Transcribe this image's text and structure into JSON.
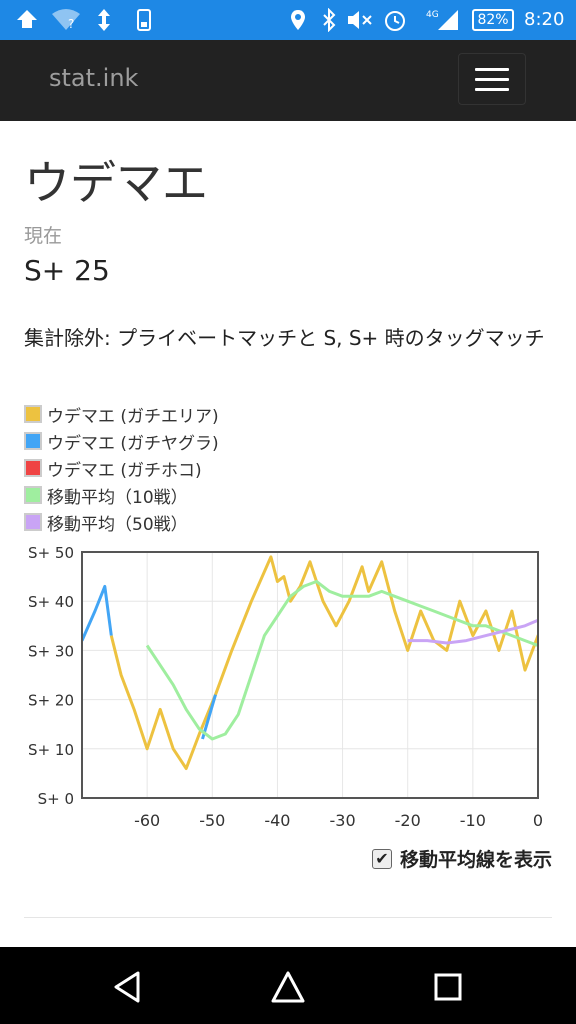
{
  "status_bar": {
    "battery": "82%",
    "time": "8:20",
    "network": "4G",
    "icons": [
      "app-icon",
      "wifi-icon",
      "sync-icon",
      "device-icon",
      "location-icon",
      "bluetooth-icon",
      "mute-icon",
      "alarm-icon",
      "signal-icon"
    ]
  },
  "navbar": {
    "brand": "stat.ink",
    "menu_icon": "hamburger-icon"
  },
  "page": {
    "title": "ウデマエ",
    "current_label": "現在",
    "current_value": "S+ 25",
    "note": "集計除外: プライベートマッチと S, S+ 時のタッグマッチ"
  },
  "legend": [
    {
      "label": "ウデマエ (ガチエリア)",
      "color": "#edc240"
    },
    {
      "label": "ウデマエ (ガチヤグラ)",
      "color": "#42a5f5"
    },
    {
      "label": "ウデマエ (ガチホコ)",
      "color": "#ef4444"
    },
    {
      "label": "移動平均（10戦）",
      "color": "#9fee9f"
    },
    {
      "label": "移動平均（50戦）",
      "color": "#c9a4f5"
    }
  ],
  "moving_average_toggle": {
    "label": "移動平均線を表示",
    "checked": true
  },
  "chart_data": {
    "type": "line",
    "x_ticks": [
      "-60",
      "-50",
      "-40",
      "-30",
      "-20",
      "-10",
      "0"
    ],
    "y_ticks": [
      "S+ 0",
      "S+ 10",
      "S+ 20",
      "S+ 30",
      "S+ 40",
      "S+ 50"
    ],
    "xlim": [
      -70,
      0
    ],
    "ylim": [
      0,
      50
    ],
    "grid": true,
    "series": [
      {
        "name": "ウデマエ (ガチエリア)",
        "color": "#edc240",
        "points": [
          [
            -65.5,
            33
          ],
          [
            -64,
            25
          ],
          [
            -62,
            18
          ],
          [
            -60,
            10
          ],
          [
            -58,
            18
          ],
          [
            -56,
            10
          ],
          [
            -54,
            6
          ],
          [
            -52,
            13
          ],
          [
            -49.5,
            21
          ],
          [
            -47,
            30
          ],
          [
            -44,
            40
          ],
          [
            -41,
            49
          ],
          [
            -40,
            44
          ],
          [
            -39,
            45
          ],
          [
            -38,
            40
          ],
          [
            -36.5,
            43
          ],
          [
            -35,
            48
          ],
          [
            -33,
            40
          ],
          [
            -31,
            35
          ],
          [
            -29,
            40
          ],
          [
            -27,
            47
          ],
          [
            -26,
            42
          ],
          [
            -24,
            48
          ],
          [
            -22,
            38
          ],
          [
            -20,
            30
          ],
          [
            -18,
            38
          ],
          [
            -16,
            32
          ],
          [
            -14,
            30
          ],
          [
            -12,
            40
          ],
          [
            -10,
            33
          ],
          [
            -8,
            38
          ],
          [
            -6,
            30
          ],
          [
            -4,
            38
          ],
          [
            -2,
            26
          ],
          [
            0,
            33
          ],
          [
            1.5,
            25
          ]
        ]
      },
      {
        "name": "ウデマエ (ガチヤグラ)",
        "color": "#42a5f5",
        "points": [
          [
            -70,
            32
          ],
          [
            -68,
            38
          ],
          [
            -66.5,
            43
          ],
          [
            -65.5,
            33
          ]
        ]
      },
      {
        "name": "ウデマエ (ガチヤグラ)",
        "color": "#42a5f5",
        "points": [
          [
            -51.5,
            12
          ],
          [
            -49.5,
            21
          ]
        ]
      },
      {
        "name": "移動平均（10戦）",
        "color": "#9fee9f",
        "points": [
          [
            -60,
            31
          ],
          [
            -58,
            27
          ],
          [
            -56,
            23
          ],
          [
            -54,
            18
          ],
          [
            -52,
            14
          ],
          [
            -50,
            12
          ],
          [
            -48,
            13
          ],
          [
            -46,
            17
          ],
          [
            -44,
            25
          ],
          [
            -42,
            33
          ],
          [
            -40,
            37
          ],
          [
            -38,
            41
          ],
          [
            -36,
            43
          ],
          [
            -34,
            44
          ],
          [
            -32,
            42
          ],
          [
            -30,
            41
          ],
          [
            -28,
            41
          ],
          [
            -26,
            41
          ],
          [
            -24,
            42
          ],
          [
            -22,
            41
          ],
          [
            -20,
            40
          ],
          [
            -18,
            39
          ],
          [
            -16,
            38
          ],
          [
            -14,
            37
          ],
          [
            -12,
            36
          ],
          [
            -10,
            35
          ],
          [
            -8,
            35
          ],
          [
            -6,
            34
          ],
          [
            -4,
            33
          ],
          [
            -2,
            32
          ],
          [
            0,
            31
          ],
          [
            1.5,
            30
          ]
        ]
      },
      {
        "name": "移動平均（50戦）",
        "color": "#c9a4f5",
        "points": [
          [
            -20,
            32
          ],
          [
            -17,
            32
          ],
          [
            -14,
            31.5
          ],
          [
            -11,
            32
          ],
          [
            -8,
            33
          ],
          [
            -5,
            34
          ],
          [
            -2,
            35
          ],
          [
            1.5,
            37
          ]
        ]
      }
    ]
  }
}
